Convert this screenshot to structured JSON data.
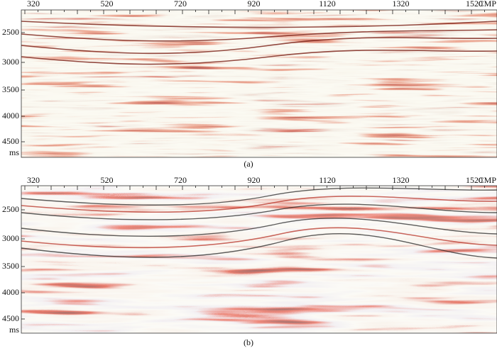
{
  "panels": [
    {
      "x_labels": [
        "320",
        "520",
        "720",
        "920",
        "1120",
        "1320",
        "1520"
      ],
      "x_unit": "CMP",
      "y_labels": [
        "2500",
        "3000",
        "3500",
        "4000",
        "4500"
      ],
      "y_unit": "ms",
      "caption": "(a)"
    },
    {
      "x_labels": [
        "320",
        "520",
        "720",
        "920",
        "1120",
        "1320",
        "1520"
      ],
      "x_unit": "CMP",
      "y_labels": [
        "2500",
        "3000",
        "3500",
        "4000",
        "4500"
      ],
      "y_unit": "ms",
      "caption": "(b)"
    }
  ]
}
